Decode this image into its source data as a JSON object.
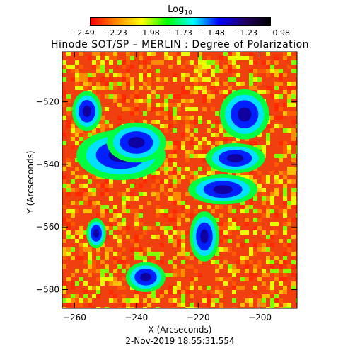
{
  "colorbar": {
    "title": "Log",
    "title_sub": "10",
    "ticks": [
      "−2.49",
      "−2.23",
      "−1.98",
      "−1.73",
      "−1.48",
      "−1.23",
      "−0.98"
    ],
    "colors": [
      "#ff0000",
      "#ff8800",
      "#ffff00",
      "#00ff00",
      "#00ffff",
      "#0000ff",
      "#220066",
      "#000000"
    ]
  },
  "title": "Hinode SOT/SP – MERLIN : Degree of Polarization",
  "xaxis": {
    "label": "X (Arcseconds)",
    "ticks": [
      "−260",
      "−240",
      "−220",
      "−200"
    ]
  },
  "yaxis": {
    "label": "Y (Arcseconds)",
    "ticks": [
      "−520",
      "−540",
      "−560",
      "−580"
    ]
  },
  "timestamp": "2-Nov-2019 18:55:31.554",
  "image": {
    "x_range": [
      -264,
      -188
    ],
    "y_range": [
      -586,
      -504
    ],
    "background": "#f04010",
    "regions": [
      {
        "cx": -245,
        "cy": -537,
        "rx": 9,
        "ry": 5
      },
      {
        "cx": -240,
        "cy": -533,
        "rx": 6,
        "ry": 4
      },
      {
        "cx": -205,
        "cy": -524,
        "rx": 5,
        "ry": 5
      },
      {
        "cx": -208,
        "cy": -538,
        "rx": 6,
        "ry": 3
      },
      {
        "cx": -212,
        "cy": -548,
        "rx": 7,
        "ry": 3
      },
      {
        "cx": -256,
        "cy": -523,
        "rx": 3,
        "ry": 4
      },
      {
        "cx": -253,
        "cy": -562,
        "rx": 2,
        "ry": 3
      },
      {
        "cx": -237,
        "cy": -576,
        "rx": 4,
        "ry": 3
      },
      {
        "cx": -218,
        "cy": -563,
        "rx": 3,
        "ry": 5
      }
    ]
  }
}
